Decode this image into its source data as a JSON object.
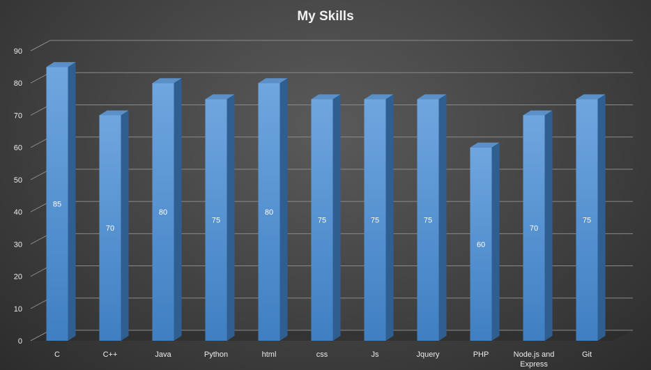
{
  "chart_data": {
    "type": "bar",
    "title": "My Skills",
    "xlabel": "",
    "ylabel": "",
    "categories": [
      [
        "C"
      ],
      [
        "C++"
      ],
      [
        "Java"
      ],
      [
        "Python"
      ],
      [
        "html"
      ],
      [
        "css"
      ],
      [
        "Js"
      ],
      [
        "Jquery"
      ],
      [
        "PHP"
      ],
      [
        "Node.js and",
        "Express"
      ],
      [
        "Git"
      ]
    ],
    "values": [
      85,
      70,
      80,
      75,
      80,
      75,
      75,
      75,
      60,
      70,
      75
    ],
    "data_labels": [
      "85",
      "70",
      "80",
      "75",
      "80",
      "75",
      "75",
      "75",
      "60",
      "70",
      "75"
    ],
    "ylim": [
      0,
      90
    ],
    "yticks": [
      0,
      10,
      20,
      30,
      40,
      50,
      60,
      70,
      80,
      90
    ],
    "grid": true,
    "legend": "none",
    "style": "3d-column",
    "colors": {
      "bar_front_top": "#6fa6df",
      "bar_front_bottom": "#3f7fc2",
      "bar_side": "#2f5e91",
      "bar_top": "#5b8fc7",
      "gridline": "#8a8a8a",
      "text": "#ececec"
    }
  }
}
